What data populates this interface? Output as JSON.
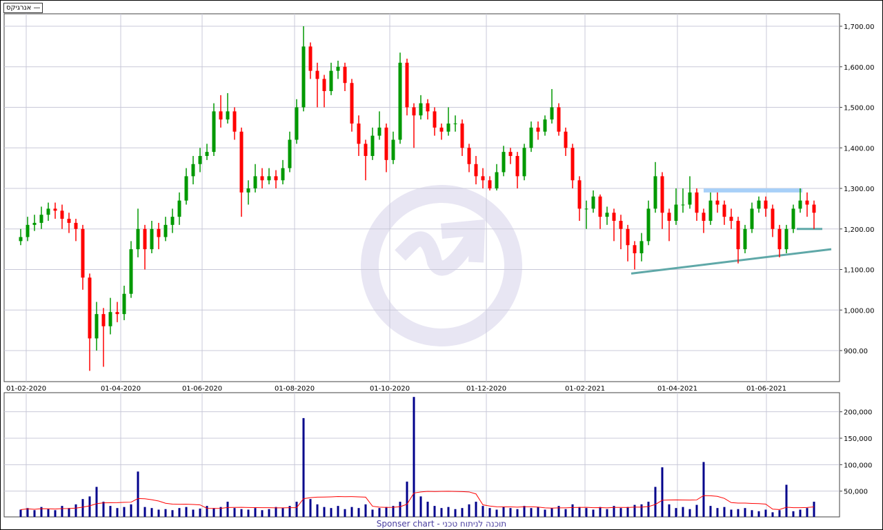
{
  "legend": {
    "label": "אנרגיקס",
    "marker": "—"
  },
  "footer": {
    "text": "Sponser chart - תוכנה לניתוח טכני"
  },
  "colors": {
    "up": "#009900",
    "down": "#ff0000",
    "volume": "#00008b",
    "volume_ma": "#ff0000",
    "grid": "#c8c8d8",
    "resistance_zone": "#a8d0f8",
    "trendline": "#5fa8a8",
    "watermark": "#e8e6f3"
  },
  "chart_data": [
    {
      "type": "candlestick",
      "ylim": [
        840,
        1720
      ],
      "y_ticks": [
        900,
        1000,
        1100,
        1200,
        1300,
        1400,
        1500,
        1600,
        1700
      ],
      "y_tick_labels": [
        "900.00",
        "1,000.00",
        "1,100.00",
        "1,200.00",
        "1,300.00",
        "1,400.00",
        "1,500.00",
        "1,600.00",
        "1,700.00"
      ],
      "x_tick_labels": [
        "01-02-2020",
        "01-04-2020",
        "01-06-2020",
        "01-08-2020",
        "01-10-2020",
        "01-12-2020",
        "01-02-2021",
        "01-04-2021",
        "01-06-2021"
      ],
      "grid": true,
      "ohlc": [
        [
          1170,
          1200,
          1160,
          1180
        ],
        [
          1180,
          1230,
          1170,
          1210
        ],
        [
          1210,
          1235,
          1195,
          1215
        ],
        [
          1215,
          1255,
          1200,
          1235
        ],
        [
          1235,
          1265,
          1220,
          1250
        ],
        [
          1250,
          1265,
          1225,
          1245
        ],
        [
          1245,
          1260,
          1200,
          1225
        ],
        [
          1225,
          1240,
          1190,
          1215
        ],
        [
          1215,
          1225,
          1170,
          1200
        ],
        [
          1200,
          1210,
          1050,
          1080
        ],
        [
          1080,
          1090,
          850,
          930
        ],
        [
          930,
          1020,
          900,
          990
        ],
        [
          990,
          1005,
          860,
          960
        ],
        [
          960,
          1030,
          940,
          995
        ],
        [
          995,
          1020,
          970,
          990
        ],
        [
          990,
          1060,
          975,
          1040
        ],
        [
          1040,
          1170,
          1030,
          1150
        ],
        [
          1150,
          1250,
          1130,
          1200
        ],
        [
          1200,
          1210,
          1100,
          1150
        ],
        [
          1150,
          1220,
          1140,
          1200
        ],
        [
          1200,
          1215,
          1150,
          1180
        ],
        [
          1180,
          1230,
          1170,
          1210
        ],
        [
          1210,
          1250,
          1190,
          1230
        ],
        [
          1230,
          1290,
          1210,
          1270
        ],
        [
          1270,
          1350,
          1260,
          1330
        ],
        [
          1330,
          1380,
          1310,
          1360
        ],
        [
          1360,
          1400,
          1340,
          1380
        ],
        [
          1380,
          1410,
          1370,
          1390
        ],
        [
          1390,
          1510,
          1380,
          1490
        ],
        [
          1490,
          1530,
          1450,
          1470
        ],
        [
          1470,
          1535,
          1460,
          1490
        ],
        [
          1490,
          1500,
          1420,
          1440
        ],
        [
          1440,
          1450,
          1230,
          1290
        ],
        [
          1290,
          1320,
          1260,
          1300
        ],
        [
          1300,
          1360,
          1290,
          1330
        ],
        [
          1330,
          1350,
          1300,
          1320
        ],
        [
          1320,
          1350,
          1310,
          1330
        ],
        [
          1330,
          1345,
          1300,
          1320
        ],
        [
          1320,
          1370,
          1310,
          1350
        ],
        [
          1350,
          1440,
          1340,
          1420
        ],
        [
          1420,
          1520,
          1410,
          1500
        ],
        [
          1500,
          1700,
          1490,
          1650
        ],
        [
          1650,
          1660,
          1570,
          1590
        ],
        [
          1590,
          1610,
          1500,
          1570
        ],
        [
          1570,
          1580,
          1500,
          1540
        ],
        [
          1540,
          1610,
          1530,
          1590
        ],
        [
          1590,
          1615,
          1570,
          1600
        ],
        [
          1600,
          1610,
          1540,
          1560
        ],
        [
          1560,
          1570,
          1440,
          1460
        ],
        [
          1460,
          1480,
          1380,
          1410
        ],
        [
          1410,
          1420,
          1320,
          1380
        ],
        [
          1380,
          1450,
          1370,
          1430
        ],
        [
          1430,
          1490,
          1420,
          1450
        ],
        [
          1450,
          1460,
          1340,
          1370
        ],
        [
          1370,
          1440,
          1360,
          1420
        ],
        [
          1420,
          1635,
          1410,
          1610
        ],
        [
          1610,
          1620,
          1480,
          1500
        ],
        [
          1500,
          1510,
          1400,
          1480
        ],
        [
          1480,
          1530,
          1470,
          1510
        ],
        [
          1510,
          1520,
          1470,
          1490
        ],
        [
          1490,
          1500,
          1430,
          1450
        ],
        [
          1450,
          1460,
          1420,
          1440
        ],
        [
          1440,
          1500,
          1430,
          1460
        ],
        [
          1460,
          1480,
          1440,
          1460
        ],
        [
          1460,
          1470,
          1380,
          1400
        ],
        [
          1400,
          1410,
          1340,
          1360
        ],
        [
          1360,
          1380,
          1310,
          1330
        ],
        [
          1330,
          1350,
          1300,
          1320
        ],
        [
          1320,
          1330,
          1295,
          1300
        ],
        [
          1300,
          1360,
          1295,
          1340
        ],
        [
          1340,
          1405,
          1330,
          1390
        ],
        [
          1390,
          1400,
          1360,
          1380
        ],
        [
          1380,
          1390,
          1300,
          1330
        ],
        [
          1330,
          1410,
          1320,
          1400
        ],
        [
          1400,
          1465,
          1390,
          1450
        ],
        [
          1450,
          1465,
          1420,
          1440
        ],
        [
          1440,
          1480,
          1430,
          1470
        ],
        [
          1470,
          1545,
          1460,
          1500
        ],
        [
          1500,
          1510,
          1430,
          1440
        ],
        [
          1440,
          1450,
          1380,
          1400
        ],
        [
          1400,
          1410,
          1300,
          1320
        ],
        [
          1320,
          1330,
          1220,
          1250
        ],
        [
          1250,
          1270,
          1200,
          1250
        ],
        [
          1250,
          1295,
          1240,
          1280
        ],
        [
          1280,
          1285,
          1200,
          1230
        ],
        [
          1230,
          1255,
          1210,
          1240
        ],
        [
          1240,
          1250,
          1170,
          1220
        ],
        [
          1220,
          1235,
          1150,
          1200
        ],
        [
          1200,
          1210,
          1120,
          1160
        ],
        [
          1160,
          1170,
          1100,
          1140
        ],
        [
          1140,
          1190,
          1120,
          1170
        ],
        [
          1170,
          1270,
          1160,
          1250
        ],
        [
          1250,
          1365,
          1240,
          1330
        ],
        [
          1330,
          1340,
          1200,
          1240
        ],
        [
          1240,
          1250,
          1170,
          1220
        ],
        [
          1220,
          1300,
          1210,
          1260
        ],
        [
          1260,
          1300,
          1240,
          1260
        ],
        [
          1260,
          1330,
          1250,
          1290
        ],
        [
          1290,
          1300,
          1220,
          1240
        ],
        [
          1240,
          1250,
          1190,
          1220
        ],
        [
          1220,
          1290,
          1210,
          1270
        ],
        [
          1270,
          1290,
          1240,
          1260
        ],
        [
          1260,
          1270,
          1210,
          1230
        ],
        [
          1230,
          1250,
          1200,
          1220
        ],
        [
          1220,
          1230,
          1115,
          1150
        ],
        [
          1150,
          1210,
          1140,
          1200
        ],
        [
          1200,
          1265,
          1190,
          1250
        ],
        [
          1250,
          1280,
          1240,
          1270
        ],
        [
          1270,
          1280,
          1230,
          1250
        ],
        [
          1250,
          1260,
          1180,
          1200
        ],
        [
          1200,
          1210,
          1130,
          1150
        ],
        [
          1150,
          1210,
          1140,
          1200
        ],
        [
          1200,
          1260,
          1190,
          1250
        ],
        [
          1250,
          1300,
          1240,
          1270
        ],
        [
          1270,
          1290,
          1230,
          1260
        ],
        [
          1260,
          1270,
          1200,
          1240
        ]
      ],
      "annotations": {
        "resistance_zone": [
          1290,
          1300
        ],
        "support_level": 1200,
        "rising_trendline": [
          1090,
          1150
        ]
      }
    },
    {
      "type": "bar",
      "ylim": [
        0,
        230000
      ],
      "y_ticks": [
        50000,
        100000,
        150000,
        200000
      ],
      "y_tick_labels": [
        "50,000",
        "100,000",
        "150,000",
        "200,000"
      ],
      "grid": true,
      "values": [
        15000,
        18000,
        14000,
        20000,
        16000,
        14000,
        22000,
        18000,
        25000,
        35000,
        40000,
        58000,
        30000,
        22000,
        18000,
        20000,
        25000,
        87000,
        20000,
        18000,
        15000,
        16000,
        14000,
        18000,
        20000,
        15000,
        17000,
        22000,
        18000,
        20000,
        30000,
        18000,
        16000,
        15000,
        18000,
        14000,
        16000,
        20000,
        18000,
        22000,
        30000,
        188000,
        35000,
        25000,
        20000,
        18000,
        22000,
        16000,
        20000,
        18000,
        25000,
        15000,
        18000,
        20000,
        22000,
        30000,
        68000,
        228000,
        40000,
        30000,
        22000,
        18000,
        20000,
        16000,
        18000,
        25000,
        30000,
        22000,
        18000,
        15000,
        20000,
        18000,
        16000,
        22000,
        18000,
        20000,
        15000,
        18000,
        22000,
        16000,
        25000,
        20000,
        18000,
        15000,
        20000,
        16000,
        22000,
        18000,
        20000,
        24000,
        25000,
        30000,
        58000,
        95000,
        25000,
        18000,
        20000,
        16000,
        24000,
        105000,
        22000,
        18000,
        20000,
        15000,
        16000,
        18000,
        14000,
        12000,
        15000,
        10000,
        14000,
        62000,
        12000,
        15000,
        18000,
        30000
      ],
      "moving_average": true
    }
  ]
}
